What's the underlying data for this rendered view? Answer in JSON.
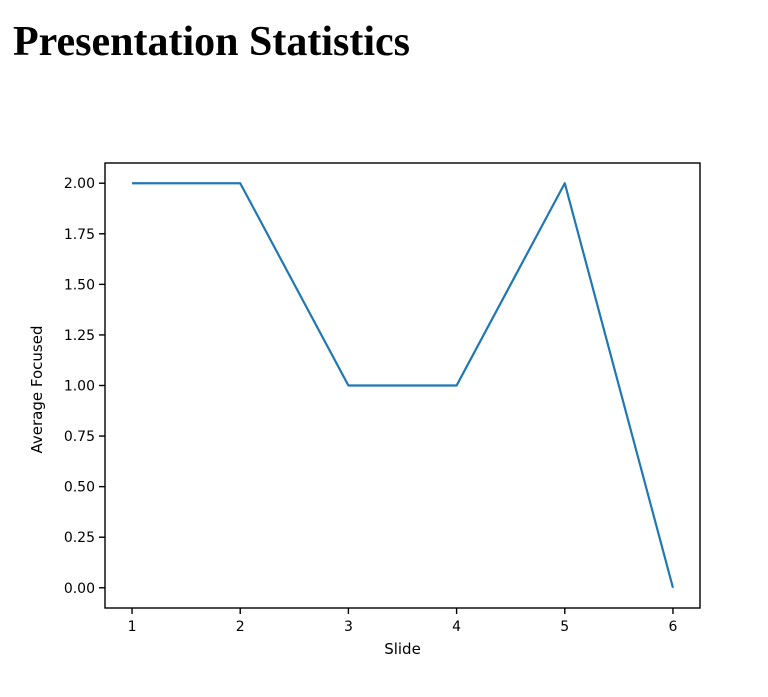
{
  "page": {
    "title": "Presentation Statistics"
  },
  "chart_data": {
    "type": "line",
    "title": "",
    "xlabel": "Slide",
    "ylabel": "Average Focused",
    "x": [
      1,
      2,
      3,
      4,
      5,
      6
    ],
    "values": [
      2,
      2,
      1,
      1,
      2,
      0
    ],
    "xticks": [
      1,
      2,
      3,
      4,
      5,
      6
    ],
    "xtick_labels": [
      "1",
      "2",
      "3",
      "4",
      "5",
      "6"
    ],
    "yticks": [
      0.0,
      0.25,
      0.5,
      0.75,
      1.0,
      1.25,
      1.5,
      1.75,
      2.0
    ],
    "ytick_labels": [
      "0.00",
      "0.25",
      "0.50",
      "0.75",
      "1.00",
      "1.25",
      "1.50",
      "1.75",
      "2.00"
    ],
    "xlim": [
      0.75,
      6.25
    ],
    "ylim": [
      -0.1,
      2.1
    ],
    "grid": false,
    "legend": null,
    "line_color": "#1f77b4",
    "spine_color": "#000000",
    "text_color": "#000000"
  }
}
